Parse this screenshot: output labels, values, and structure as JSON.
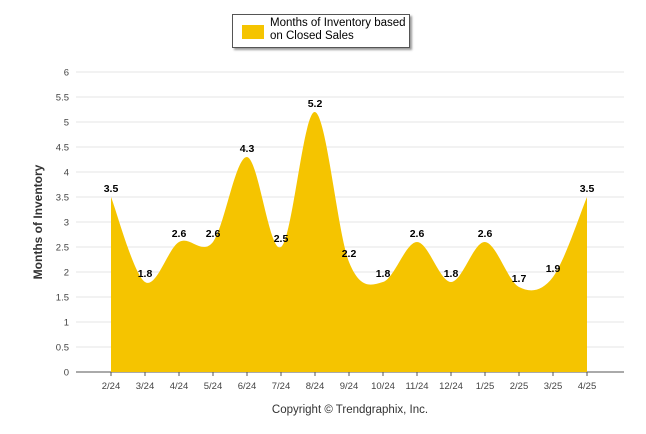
{
  "chart_data": {
    "type": "area",
    "categories": [
      "2/24",
      "3/24",
      "4/24",
      "5/24",
      "6/24",
      "7/24",
      "8/24",
      "9/24",
      "10/24",
      "11/24",
      "12/24",
      "1/25",
      "2/25",
      "3/25",
      "4/25"
    ],
    "series": [
      {
        "name": "Months of Inventory based on Closed Sales",
        "values": [
          3.5,
          1.8,
          2.6,
          2.6,
          4.3,
          2.5,
          5.2,
          2.2,
          1.8,
          2.6,
          1.8,
          2.6,
          1.7,
          1.9,
          3.5
        ],
        "color": "#F5C400"
      }
    ],
    "ylabel": "Months of Inventory",
    "ylim": [
      0,
      6
    ],
    "yticks": [
      "0",
      "0.5",
      "1",
      "1.5",
      "2",
      "2.5",
      "3",
      "3.5",
      "4",
      "4.5",
      "5",
      "5.5",
      "6"
    ],
    "grid": true,
    "legend_position": "top-center",
    "footer": "Copyright © Trendgraphix, Inc."
  }
}
